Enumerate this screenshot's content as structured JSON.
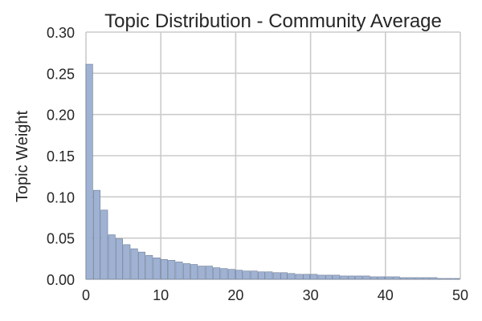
{
  "chart_data": {
    "type": "bar",
    "title": "Topic Distribution - Community Average",
    "xlabel": "",
    "ylabel": "Topic Weight",
    "xlim": [
      0,
      50
    ],
    "ylim": [
      0,
      0.3
    ],
    "x_ticks": [
      0,
      10,
      20,
      30,
      40,
      50
    ],
    "y_ticks": [
      "0.00",
      "0.05",
      "0.10",
      "0.15",
      "0.20",
      "0.25",
      "0.30"
    ],
    "grid": true,
    "bar_color": "#9fb2d3",
    "x": [
      0,
      1,
      2,
      3,
      4,
      5,
      6,
      7,
      8,
      9,
      10,
      11,
      12,
      13,
      14,
      15,
      16,
      17,
      18,
      19,
      20,
      21,
      22,
      23,
      24,
      25,
      26,
      27,
      28,
      29,
      30,
      31,
      32,
      33,
      34,
      35,
      36,
      37,
      38,
      39,
      40,
      41,
      42,
      43,
      44,
      45,
      46,
      47,
      48,
      49
    ],
    "values": [
      0.261,
      0.108,
      0.084,
      0.054,
      0.049,
      0.042,
      0.037,
      0.033,
      0.029,
      0.026,
      0.024,
      0.023,
      0.021,
      0.019,
      0.018,
      0.016,
      0.016,
      0.014,
      0.013,
      0.012,
      0.011,
      0.01,
      0.01,
      0.009,
      0.009,
      0.008,
      0.008,
      0.007,
      0.006,
      0.006,
      0.006,
      0.005,
      0.005,
      0.005,
      0.004,
      0.004,
      0.004,
      0.004,
      0.003,
      0.003,
      0.003,
      0.003,
      0.002,
      0.002,
      0.002,
      0.002,
      0.002,
      0.001,
      0.001,
      0.001
    ]
  }
}
